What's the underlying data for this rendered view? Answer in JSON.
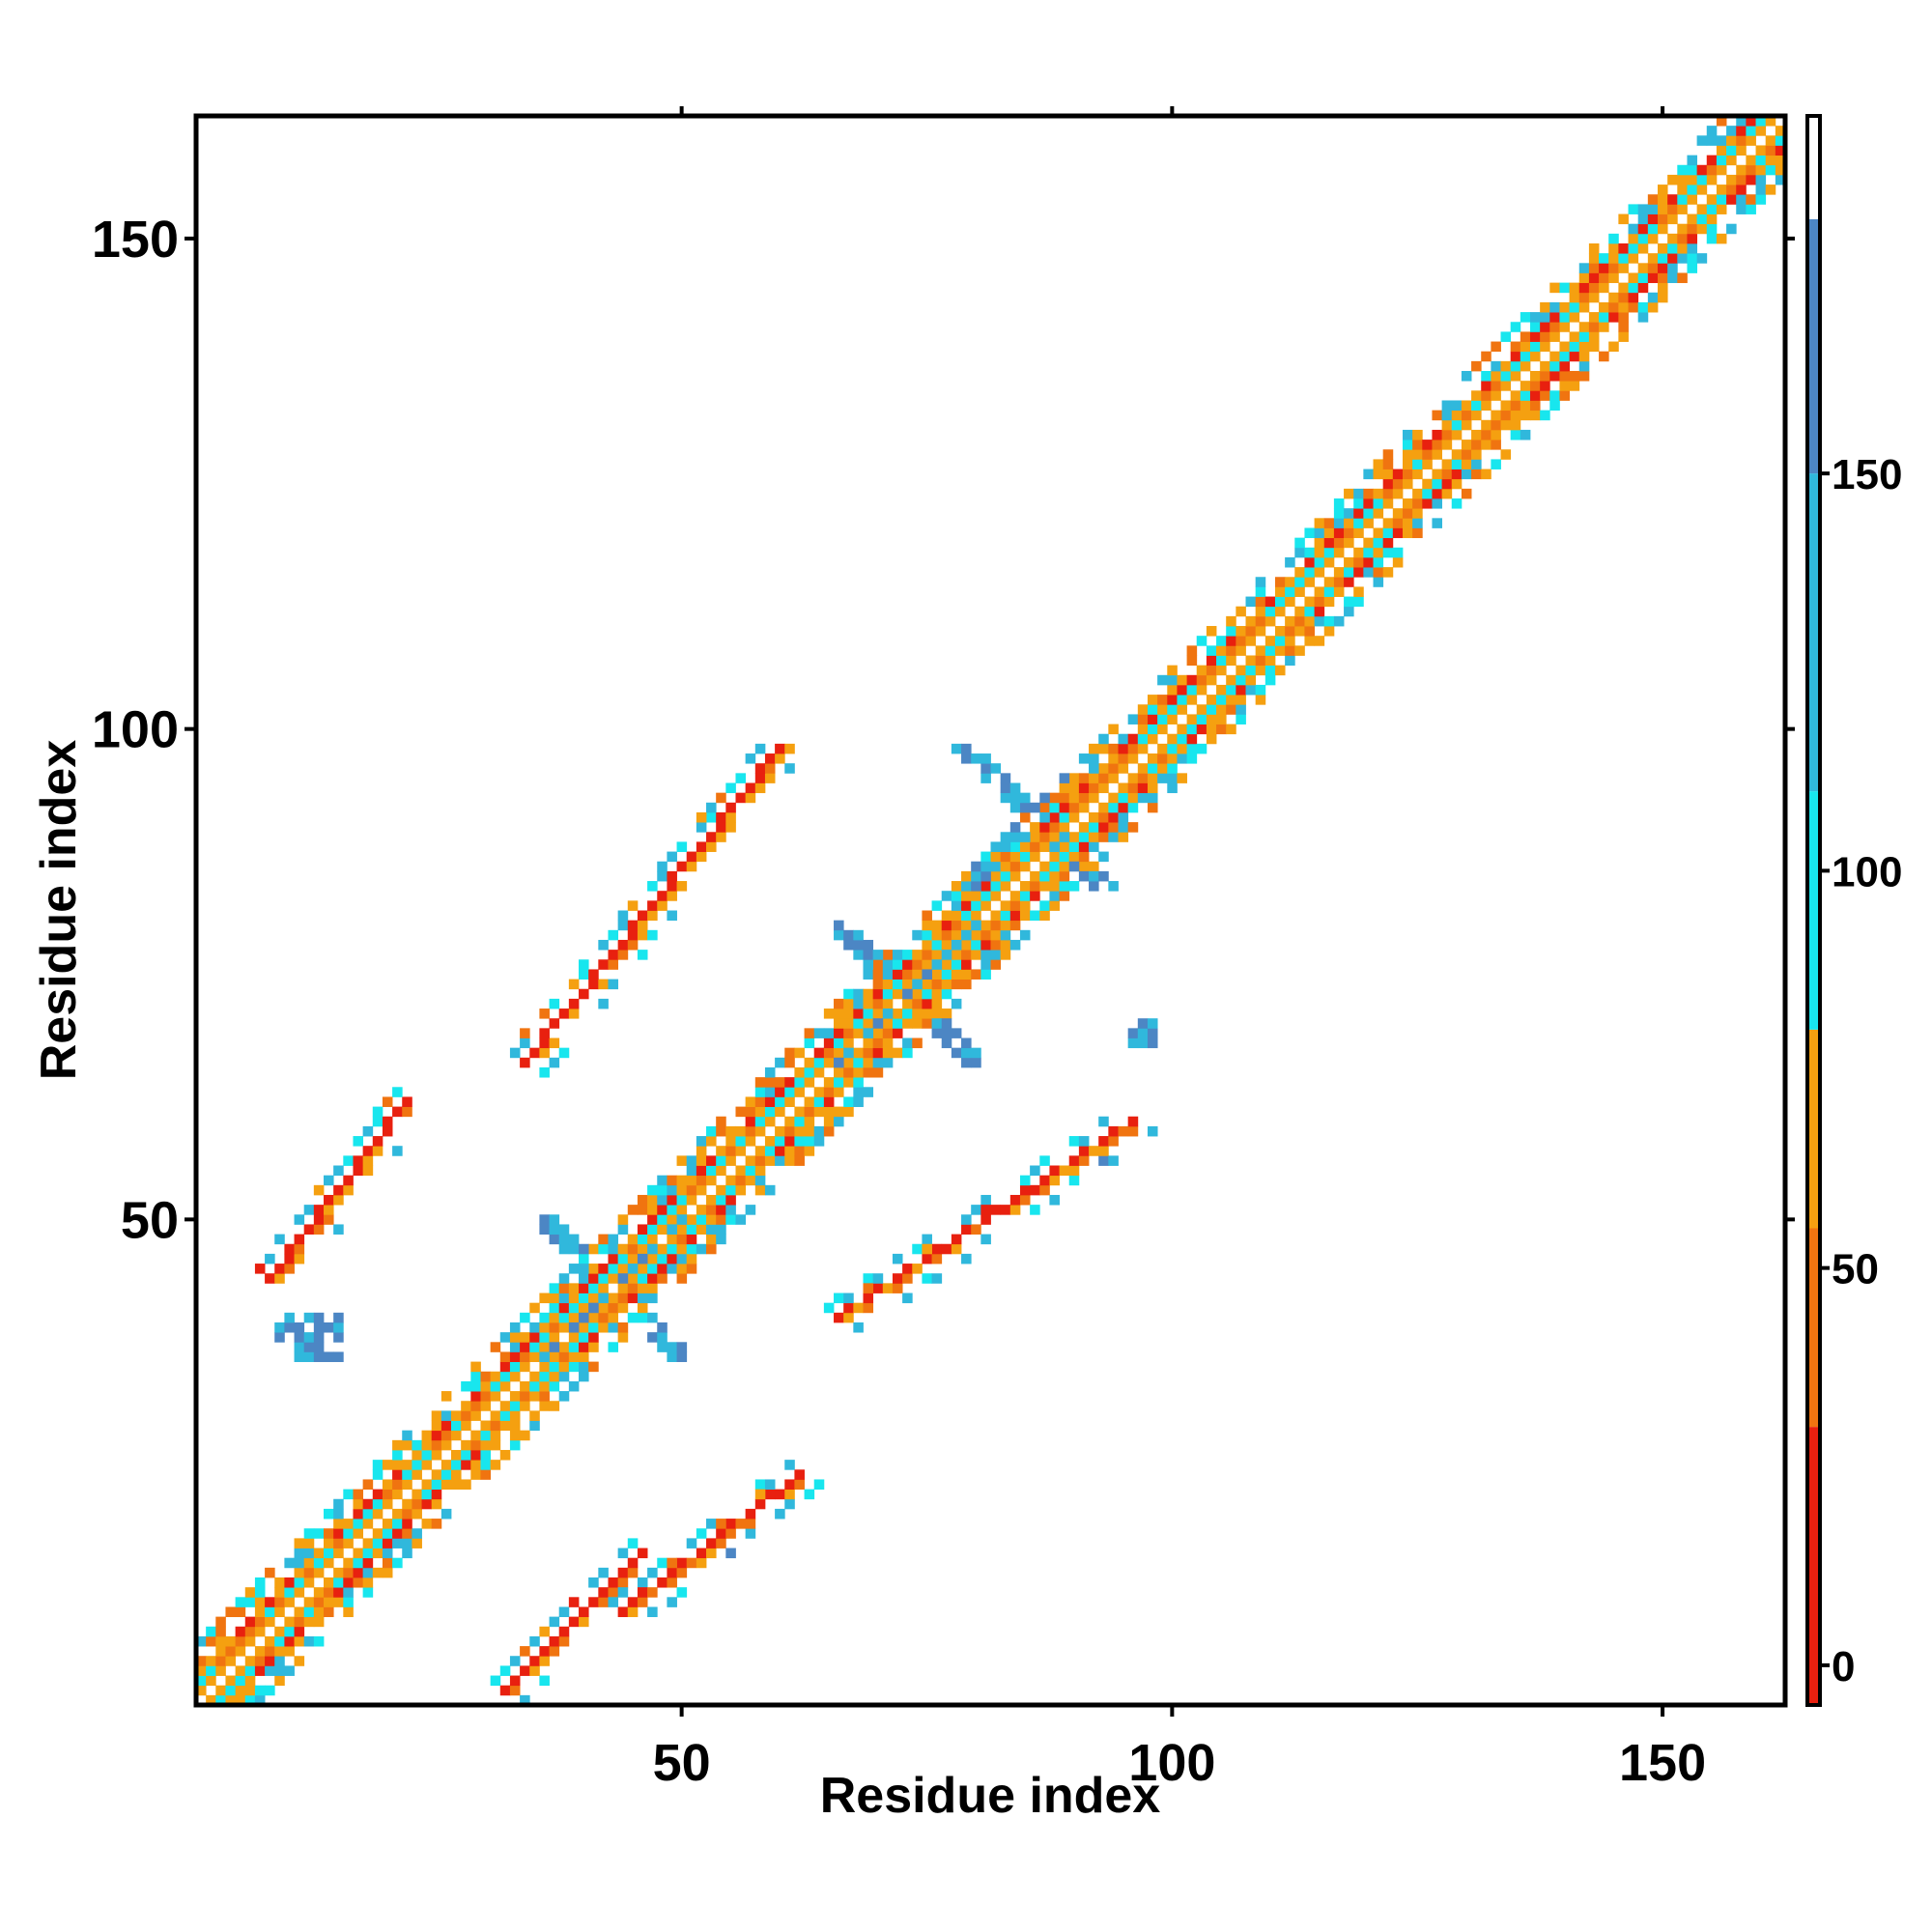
{
  "chart_data": {
    "type": "heatmap",
    "title": "",
    "xlabel": "Residue index",
    "ylabel": "Residue index",
    "xlim": [
      1,
      162
    ],
    "ylim": [
      1,
      162
    ],
    "xticks": [
      50,
      100,
      150
    ],
    "yticks": [
      50,
      100,
      150
    ],
    "colorbar": {
      "range": [
        -5,
        195
      ],
      "ticks": [
        0,
        50,
        100,
        150
      ],
      "bands": [
        {
          "from": -5,
          "to": 30,
          "color": "#e8200f"
        },
        {
          "from": 30,
          "to": 55,
          "color": "#f07410"
        },
        {
          "from": 55,
          "to": 80,
          "color": "#f5a010"
        },
        {
          "from": 80,
          "to": 110,
          "color": "#18e6ee"
        },
        {
          "from": 110,
          "to": 150,
          "color": "#30b8dc"
        },
        {
          "from": 150,
          "to": 182,
          "color": "#4c86c4"
        },
        {
          "from": 182,
          "to": 195,
          "color": "#ffffff"
        }
      ]
    },
    "diagonal_band": {
      "from": 1,
      "to": 162,
      "half_width": 6
    },
    "off_diagonal_contacts": [
      {
        "i_range": [
          8,
          22
        ],
        "j_range": [
          44,
          62
        ],
        "anti_diagonal": true
      },
      {
        "i_range": [
          9,
          15
        ],
        "j_range": [
          36,
          40
        ]
      },
      {
        "i_range": [
          34,
          60
        ],
        "j_range": [
          66,
          98
        ],
        "anti_diagonal": true
      },
      {
        "i_range": [
          32,
          46
        ],
        "j_range": [
          2,
          16
        ],
        "anti_diagonal": true
      },
      {
        "i_range": [
          44,
          62
        ],
        "j_range": [
          10,
          24
        ],
        "anti_diagonal": true
      },
      {
        "i_range": [
          36,
          50
        ],
        "j_range": [
          36,
          50
        ],
        "cross": true
      },
      {
        "i_range": [
          66,
          80
        ],
        "j_range": [
          66,
          80
        ],
        "cross": true
      },
      {
        "i_range": [
          76,
          96
        ],
        "j_range": [
          84,
          98
        ],
        "cross": true
      },
      {
        "i_range": [
          66,
          96
        ],
        "j_range": [
          40,
          60
        ],
        "anti_diagonal": true
      },
      {
        "i_range": [
          96,
          98
        ],
        "j_range": [
          68,
          70
        ]
      }
    ]
  }
}
